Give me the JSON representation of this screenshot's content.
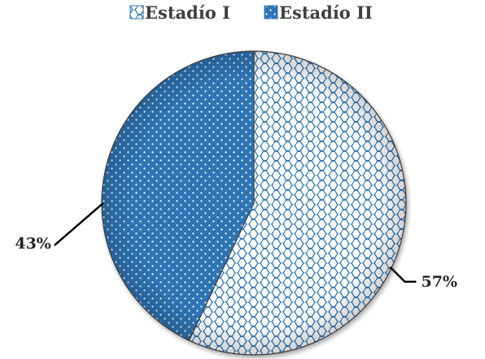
{
  "chart_data": {
    "type": "pie",
    "categories": [
      "Estadío I",
      "Estadío II"
    ],
    "values": [
      57,
      43
    ],
    "labels": [
      "57%",
      "43%"
    ],
    "legend_position": "top",
    "colors": {
      "slice_1_fill": "#ffffff",
      "slice_1_pattern": "#2e75b6",
      "slice_2_fill": "#2e75b6",
      "slice_2_pattern": "#ffffff",
      "leader_line": "#000000"
    }
  }
}
